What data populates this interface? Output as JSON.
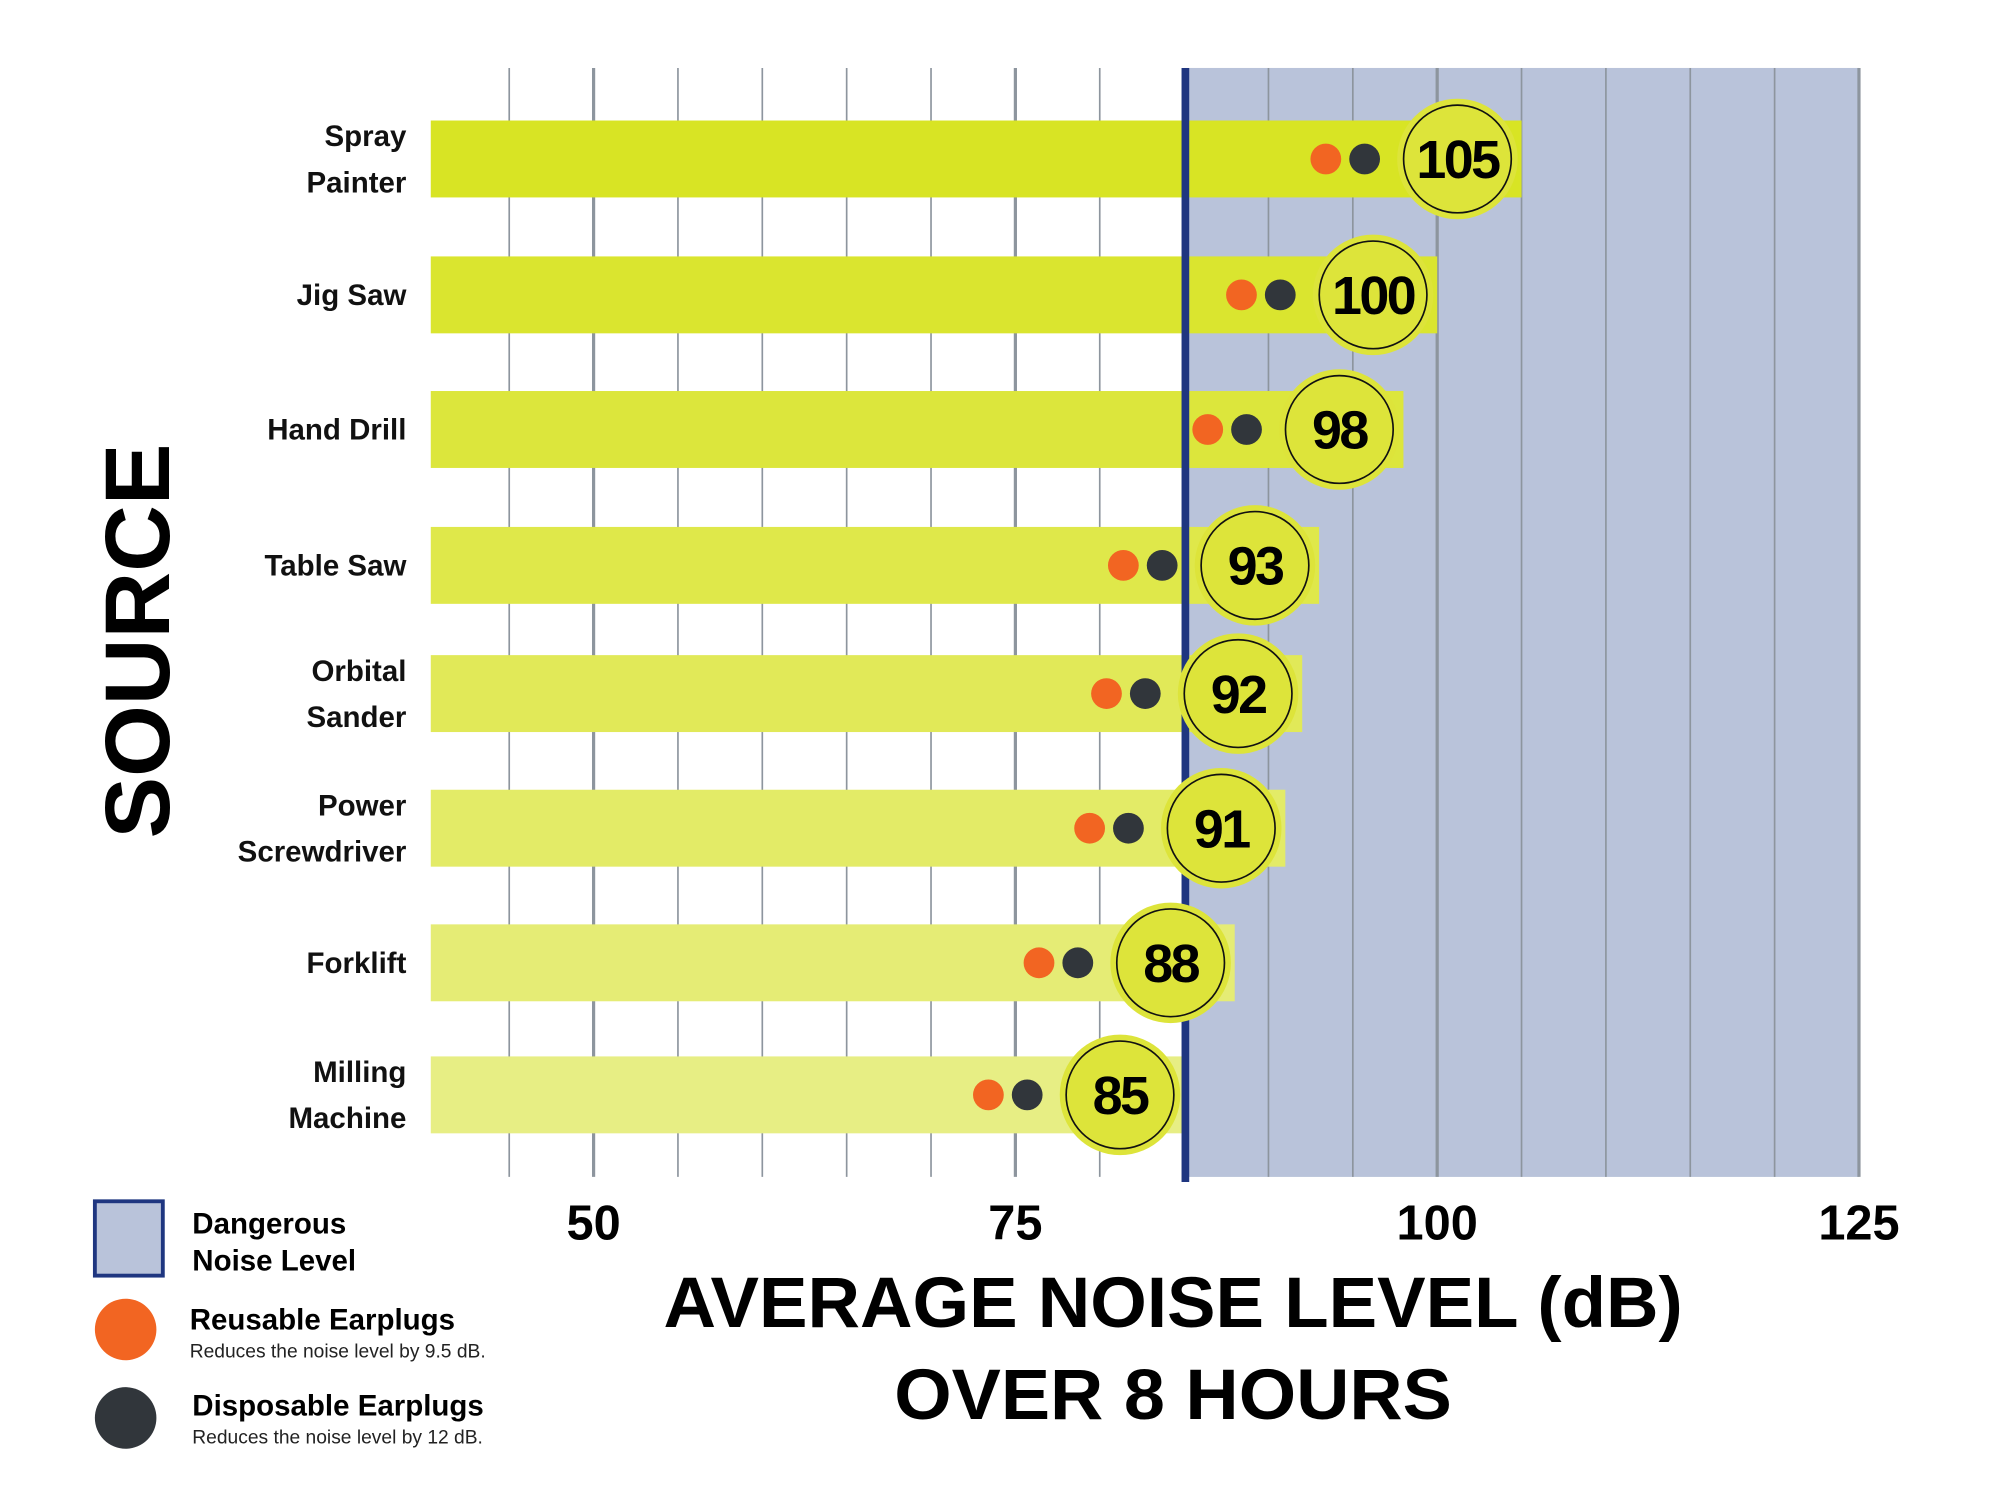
{
  "chart_data": {
    "type": "bar",
    "orientation": "horizontal",
    "categories": [
      [
        "Spray",
        "Painter"
      ],
      [
        "Jig Saw"
      ],
      [
        "Hand Drill"
      ],
      [
        "Table Saw"
      ],
      [
        "Orbital",
        "Sander"
      ],
      [
        "Power",
        "Screwdriver"
      ],
      [
        "Forklift"
      ],
      [
        "Milling",
        "Machine"
      ]
    ],
    "values": [
      105,
      100,
      98,
      93,
      92,
      91,
      88,
      85
    ],
    "value_labels": [
      "105",
      "100",
      "98",
      "93",
      "92",
      "91",
      "88",
      "85"
    ],
    "xlabel": [
      "AVERAGE NOISE LEVEL (dB)",
      "OVER 8 HOURS"
    ],
    "ylabel": "SOURCE",
    "xlim": [
      40,
      125
    ],
    "xticks": [
      50,
      75,
      100,
      125
    ],
    "xtick_labels": [
      "50",
      "75",
      "100",
      "125"
    ],
    "grid": true,
    "grid_step": 5,
    "danger_threshold": 85,
    "legend": {
      "placement": "bottom-left",
      "items": [
        {
          "title": "Dangerous",
          "title2": "Noise Level",
          "desc": "",
          "color": "#b9c3da",
          "border": "#1f3680"
        },
        {
          "title": "Reusable Earplugs",
          "desc": "Reduces the noise level by 9.5 dB.",
          "color": "#f26522"
        },
        {
          "title": "Disposable Earplugs",
          "desc": "Reduces the noise level by 12 dB.",
          "color": "#31363b"
        }
      ]
    },
    "colors": {
      "bars": [
        "#d8e424",
        "#dae52f",
        "#dce63c",
        "#dfe84a",
        "#e1e958",
        "#e3eb67",
        "#e5ec75",
        "#e7ee84"
      ],
      "danger_zone": "#b9c3da",
      "danger_line": "#1f3680",
      "reusable_dot": "#f26522",
      "disposable_dot": "#31363b",
      "badge": "#dde43a"
    }
  }
}
